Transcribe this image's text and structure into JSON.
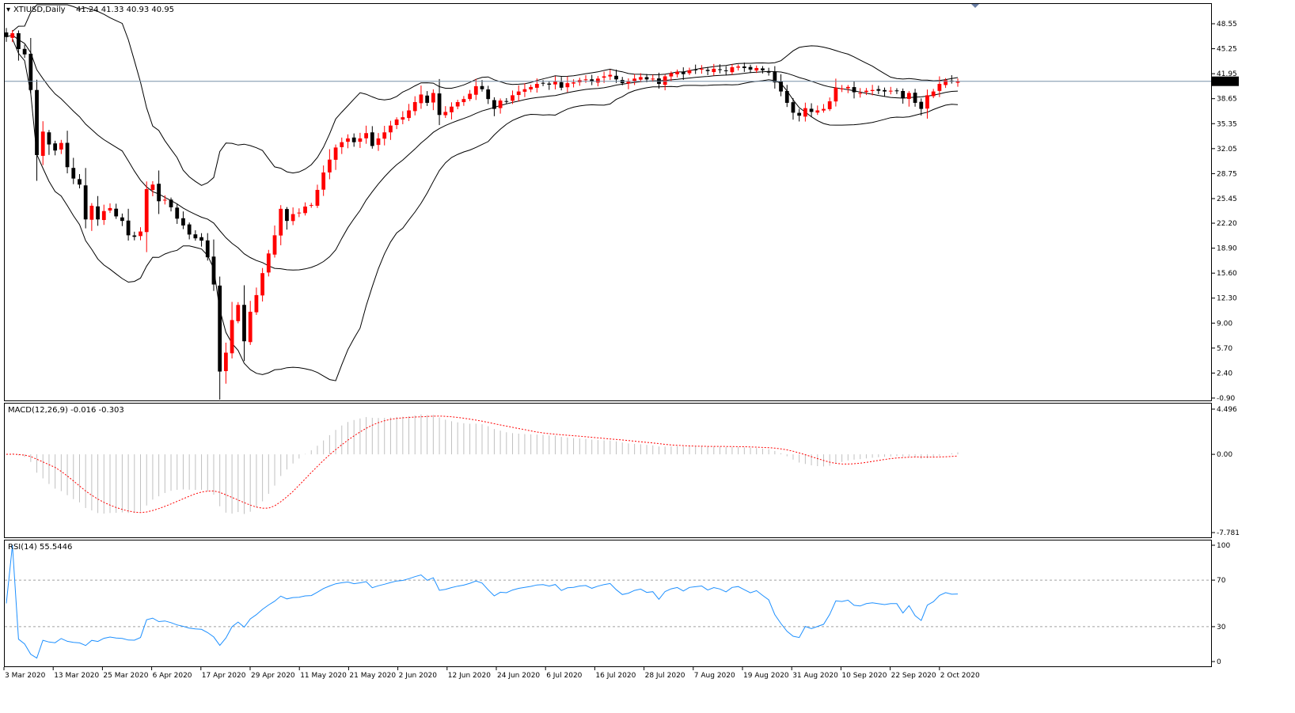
{
  "chart_data": [
    {
      "type": "candlestick",
      "title": "XTIUSD,Daily",
      "ohlc_label": "41.24 41.33 40.93 40.95",
      "current_price": "40.95",
      "y_ticks": [
        "48.55",
        "45.25",
        "41.95",
        "38.65",
        "35.35",
        "32.05",
        "28.75",
        "25.45",
        "22.20",
        "18.90",
        "15.60",
        "12.30",
        "9.00",
        "5.70",
        "2.40",
        "-0.90"
      ],
      "ylim": [
        -0.9,
        48.55
      ],
      "x_ticks": [
        "3 Mar 2020",
        "13 Mar 2020",
        "25 Mar 2020",
        "6 Apr 2020",
        "17 Apr 2020",
        "29 Apr 2020",
        "11 May 2020",
        "21 May 2020",
        "2 Jun 2020",
        "12 Jun 2020",
        "24 Jun 2020",
        "6 Jul 2020",
        "16 Jul 2020",
        "28 Jul 2020",
        "7 Aug 2020",
        "19 Aug 2020",
        "31 Aug 2020",
        "10 Sep 2020",
        "22 Sep 2020",
        "2 Oct 2020"
      ],
      "closes": [
        46.8,
        47.3,
        45.2,
        44.5,
        39.8,
        31.2,
        34.3,
        32.6,
        31.8,
        32.8,
        29.6,
        28.1,
        27.3,
        22.7,
        24.5,
        22.7,
        23.8,
        24.2,
        23.1,
        22.5,
        20.6,
        20.4,
        21.1,
        26.7,
        27.3,
        25.1,
        25.3,
        24.3,
        22.8,
        21.9,
        20.7,
        20.2,
        19.9,
        17.7,
        14.1,
        2.6,
        5.1,
        9.4,
        11.4,
        6.6,
        10.5,
        12.7,
        15.6,
        18.2,
        20.6,
        24.1,
        22.5,
        23.4,
        23.6,
        24.4,
        24.6,
        26.6,
        28.9,
        30.6,
        32.2,
        32.9,
        33.4,
        32.9,
        33.4,
        34.1,
        32.4,
        33.4,
        34.2,
        35.1,
        35.9,
        36.2,
        37.1,
        38.2,
        39.2,
        38.1,
        39.4,
        36.5,
        36.9,
        37.6,
        38.2,
        38.6,
        39.3,
        40.3,
        39.9,
        38.6,
        37.3,
        38.4,
        38.3,
        39.1,
        39.6,
        39.9,
        40.2,
        40.6,
        40.7,
        40.5,
        40.9,
        40.1,
        40.7,
        40.8,
        41.1,
        41.2,
        40.9,
        41.3,
        41.6,
        41.8,
        41.2,
        40.7,
        40.9,
        41.3,
        41.5,
        41.2,
        41.3,
        40.6,
        41.6,
        42.0,
        42.2,
        41.9,
        42.4,
        42.5,
        42.6,
        42.3,
        42.6,
        42.5,
        42.3,
        42.8,
        42.9,
        42.7,
        42.5,
        42.7,
        42.4,
        42.1,
        40.8,
        39.6,
        38.1,
        36.8,
        36.4,
        37.4,
        36.9,
        37.1,
        37.3,
        38.3,
        40.1,
        40.0,
        40.2,
        39.5,
        39.4,
        39.7,
        39.8,
        39.7,
        39.6,
        39.7,
        39.7,
        38.7,
        39.4,
        38.1,
        37.3,
        39.1,
        39.6,
        40.6,
        41.1,
        40.9,
        40.95
      ],
      "series": [
        {
          "name": "MACD(12,26,9)",
          "label": "MACD(12,26,9) -0.016 -0.303",
          "y_ticks": [
            "4.496",
            "0.00",
            "-7.781"
          ],
          "ylim": [
            -7.781,
            4.496
          ]
        },
        {
          "name": "RSI(14)",
          "label": "RSI(14) 55.5446",
          "y_ticks": [
            "100",
            "70",
            "30",
            "0"
          ],
          "ylim": [
            0,
            100
          ],
          "levels": [
            70,
            30
          ],
          "color": "#1e90ff"
        }
      ]
    }
  ],
  "colors": {
    "bull": "#ff0000",
    "bear": "#000000",
    "signal": "#ff0000",
    "rsi": "#1e90ff",
    "hist": "#c0c0c0"
  }
}
